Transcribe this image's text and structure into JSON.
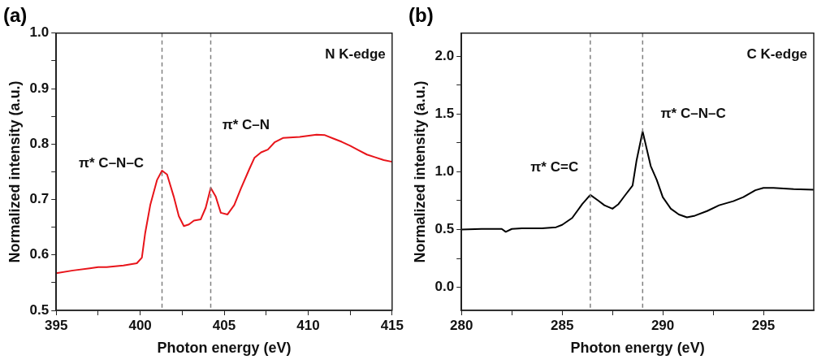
{
  "chart_data": [
    {
      "type": "line",
      "title": "(a)",
      "xlabel": "Photon energy (eV)",
      "ylabel": "Normalized intensity (a.u.)",
      "xlim": [
        395,
        415
      ],
      "ylim": [
        0.5,
        1.0
      ],
      "xticks": [
        395,
        {
          "value": 397.5,
          "label": null
        },
        400,
        {
          "value": 402.5,
          "label": null
        },
        405,
        {
          "value": 407.5,
          "label": null
        },
        410,
        {
          "value": 412.5,
          "label": null
        },
        415
      ],
      "yticks": [
        {
          "value": 0.5,
          "label": "0.5"
        },
        {
          "value": 0.55,
          "label": null
        },
        {
          "value": 0.6,
          "label": "0.6"
        },
        {
          "value": 0.65,
          "label": null
        },
        {
          "value": 0.7,
          "label": "0.7"
        },
        {
          "value": 0.75,
          "label": null
        },
        {
          "value": 0.8,
          "label": "0.8"
        },
        {
          "value": 0.85,
          "label": null
        },
        {
          "value": 0.9,
          "label": "0.9"
        },
        {
          "value": 0.95,
          "label": null
        },
        {
          "value": 1.0,
          "label": "1.0"
        }
      ],
      "x": [
        395,
        396,
        397,
        397.5,
        398,
        399,
        399.8,
        400.1,
        400.3,
        400.6,
        401,
        401.3,
        401.6,
        402,
        402.3,
        402.6,
        402.9,
        403.2,
        403.6,
        403.9,
        404.2,
        404.5,
        404.8,
        405.2,
        405.6,
        406,
        406.5,
        406.8,
        407.2,
        407.6,
        408,
        408.5,
        409.5,
        410.5,
        411,
        411.5,
        412,
        412.5,
        413,
        413.5,
        414,
        414.5,
        415
      ],
      "series": [
        {
          "color": "#e8141a",
          "values": [
            0.567,
            0.572,
            0.576,
            0.578,
            0.578,
            0.581,
            0.585,
            0.595,
            0.64,
            0.69,
            0.735,
            0.752,
            0.745,
            0.705,
            0.67,
            0.652,
            0.655,
            0.662,
            0.664,
            0.685,
            0.721,
            0.705,
            0.676,
            0.673,
            0.69,
            0.72,
            0.755,
            0.775,
            0.785,
            0.79,
            0.803,
            0.811,
            0.813,
            0.817,
            0.816,
            0.81,
            0.804,
            0.797,
            0.789,
            0.781,
            0.776,
            0.771,
            0.768
          ]
        }
      ],
      "ref_lines": [
        {
          "axis": "x",
          "value": 401.3,
          "color": "#808080",
          "line_style": "dashed"
        },
        {
          "axis": "x",
          "value": 404.2,
          "color": "#808080",
          "line_style": "dashed"
        }
      ],
      "annotations": [
        "N K-edge",
        "π* C–N–C",
        "π* C–N"
      ]
    },
    {
      "type": "line",
      "title": "(b)",
      "xlabel": "Photon energy (eV)",
      "ylabel": "Normalized intensity (a.u.)",
      "xlim": [
        280,
        297.5
      ],
      "ylim": [
        -0.2,
        2.2
      ],
      "xticks": [
        280,
        {
          "value": 282.5,
          "label": null
        },
        285,
        {
          "value": 287.5,
          "label": null
        },
        290,
        {
          "value": 292.5,
          "label": null
        },
        295
      ],
      "yticks": [
        {
          "value": 0,
          "label": "0.0"
        },
        {
          "value": 0.25,
          "label": null
        },
        {
          "value": 0.5,
          "label": "0.5"
        },
        {
          "value": 0.75,
          "label": null
        },
        {
          "value": 1,
          "label": "1.0"
        },
        {
          "value": 1.25,
          "label": null
        },
        {
          "value": 1.5,
          "label": "1.5"
        },
        {
          "value": 1.75,
          "label": null
        },
        {
          "value": 2,
          "label": "2.0"
        }
      ],
      "x": [
        280,
        281,
        282,
        282.2,
        282.5,
        283,
        284,
        284.7,
        285,
        285.5,
        286,
        286.4,
        286.8,
        287.1,
        287.5,
        287.8,
        288.1,
        288.5,
        288.7,
        289,
        289.2,
        289.4,
        289.7,
        290,
        290.4,
        290.8,
        291.2,
        291.6,
        292.2,
        292.8,
        293.5,
        294,
        294.6,
        295,
        295.5,
        296.5,
        297.5
      ],
      "series": [
        {
          "color": "#000000",
          "values": [
            0.5,
            0.505,
            0.505,
            0.48,
            0.505,
            0.51,
            0.51,
            0.52,
            0.54,
            0.6,
            0.72,
            0.8,
            0.75,
            0.71,
            0.68,
            0.72,
            0.79,
            0.88,
            1.1,
            1.35,
            1.2,
            1.05,
            0.93,
            0.78,
            0.68,
            0.63,
            0.605,
            0.62,
            0.66,
            0.71,
            0.745,
            0.78,
            0.84,
            0.86,
            0.86,
            0.85,
            0.845
          ]
        }
      ],
      "ref_lines": [
        {
          "axis": "x",
          "value": 286.4,
          "color": "#808080",
          "line_style": "dashed"
        },
        {
          "axis": "x",
          "value": 289.0,
          "color": "#808080",
          "line_style": "dashed"
        }
      ],
      "annotations": [
        "C K-edge",
        "π* C=C",
        "π* C–N–C"
      ]
    }
  ]
}
